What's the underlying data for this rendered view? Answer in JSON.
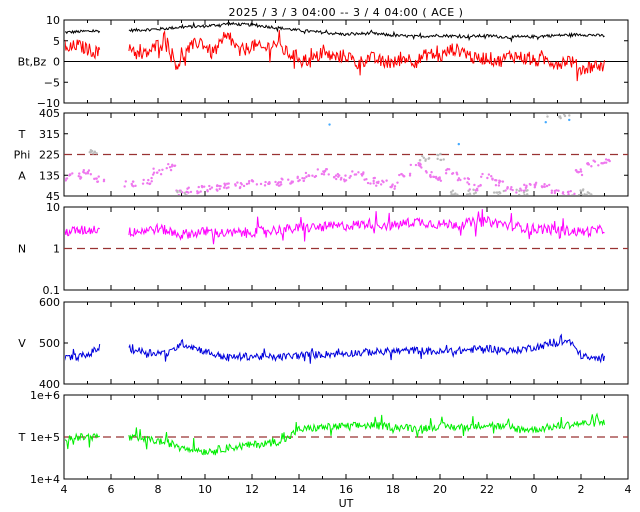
{
  "title": "2025 /  3 /  3   04:00 -- 3 /  4   04:00 ( ACE )",
  "x_axis": {
    "label": "UT",
    "range_hours": [
      4,
      28
    ],
    "ticks": [
      {
        "h": 4,
        "label": "4"
      },
      {
        "h": 6,
        "label": "6"
      },
      {
        "h": 8,
        "label": "8"
      },
      {
        "h": 10,
        "label": "10"
      },
      {
        "h": 12,
        "label": "12"
      },
      {
        "h": 14,
        "label": "14"
      },
      {
        "h": 16,
        "label": "16"
      },
      {
        "h": 18,
        "label": "18"
      },
      {
        "h": 20,
        "label": "20"
      },
      {
        "h": 22,
        "label": "22"
      },
      {
        "h": 24,
        "label": "0"
      },
      {
        "h": 26,
        "label": "2"
      },
      {
        "h": 28,
        "label": "4"
      }
    ]
  },
  "colors": {
    "bt": "#000000",
    "bz": "#ff0000",
    "theta": "#44aaff",
    "phi_away": "#ee77ee",
    "phi_toward": "#bbbbbb",
    "density": "#ff00ff",
    "speed": "#0000dd",
    "temperature": "#00ee00",
    "reference_dash": "#993333"
  },
  "chart_data": [
    {
      "type": "line",
      "name": "magnetic-field",
      "ylabel": "Bt,Bz",
      "ylim": [
        -10,
        10
      ],
      "ticks": [
        "10",
        "5",
        "0",
        "−5",
        "−10"
      ],
      "tick_values": [
        10,
        5,
        0,
        -5,
        -10
      ],
      "reference_line": 0,
      "gaps": [
        [
          5.55,
          6.75
        ],
        [
          27.2,
          28
        ]
      ],
      "series": [
        {
          "name": "Bt",
          "color": "#000000",
          "values": [
            [
              4.0,
              7.0
            ],
            [
              5.0,
              7.3
            ],
            [
              6.8,
              7.5
            ],
            [
              8.0,
              7.8
            ],
            [
              9.0,
              8.3
            ],
            [
              10.0,
              8.5
            ],
            [
              11.0,
              9.1
            ],
            [
              12.0,
              8.8
            ],
            [
              13.0,
              8.2
            ],
            [
              14.0,
              7.5
            ],
            [
              15.0,
              7.0
            ],
            [
              16.0,
              6.5
            ],
            [
              17.0,
              6.8
            ],
            [
              18.0,
              6.3
            ],
            [
              19.0,
              6.0
            ],
            [
              20.0,
              6.3
            ],
            [
              21.0,
              6.0
            ],
            [
              22.0,
              6.2
            ],
            [
              23.0,
              5.8
            ],
            [
              24.0,
              6.0
            ],
            [
              25.0,
              6.3
            ],
            [
              26.0,
              6.5
            ],
            [
              27.0,
              6.2
            ]
          ]
        },
        {
          "name": "Bz",
          "color": "#ff0000",
          "values": [
            [
              4.0,
              2.0
            ],
            [
              4.5,
              4.0
            ],
            [
              5.0,
              3.0
            ],
            [
              5.5,
              2.0
            ],
            [
              6.8,
              4.0
            ],
            [
              7.2,
              1.0
            ],
            [
              7.8,
              3.0
            ],
            [
              8.3,
              6.0
            ],
            [
              8.8,
              -1.0
            ],
            [
              9.3,
              3.0
            ],
            [
              9.8,
              5.0
            ],
            [
              10.3,
              2.0
            ],
            [
              11.0,
              6.0
            ],
            [
              11.5,
              2.0
            ],
            [
              12.0,
              4.0
            ],
            [
              12.5,
              3.0
            ],
            [
              13.0,
              4.5
            ],
            [
              13.5,
              2.0
            ],
            [
              14.0,
              1.0
            ],
            [
              14.5,
              0.0
            ],
            [
              15.0,
              2.0
            ],
            [
              15.5,
              1.0
            ],
            [
              16.0,
              1.5
            ],
            [
              16.5,
              -0.5
            ],
            [
              17.0,
              1.0
            ],
            [
              17.5,
              0.0
            ],
            [
              18.0,
              -0.5
            ],
            [
              18.5,
              1.0
            ],
            [
              19.0,
              0.0
            ],
            [
              19.5,
              2.0
            ],
            [
              20.0,
              1.0
            ],
            [
              20.5,
              3.0
            ],
            [
              21.0,
              2.5
            ],
            [
              21.5,
              0.5
            ],
            [
              22.0,
              1.0
            ],
            [
              22.5,
              0.0
            ],
            [
              23.0,
              1.5
            ],
            [
              23.5,
              1.0
            ],
            [
              24.0,
              0.0
            ],
            [
              24.5,
              0.5
            ],
            [
              25.0,
              -0.5
            ],
            [
              25.5,
              0.5
            ],
            [
              26.0,
              -2.0
            ],
            [
              26.5,
              -1.0
            ],
            [
              27.0,
              -1.0
            ]
          ]
        }
      ]
    },
    {
      "type": "scatter",
      "name": "field-angles",
      "ylabels": [
        "T",
        "Phi",
        "A"
      ],
      "ylim": [
        45,
        405
      ],
      "ticks": [
        "405",
        "315",
        "225",
        "135",
        "45"
      ],
      "tick_values": [
        405,
        315,
        225,
        135,
        45
      ],
      "reference_line": 225,
      "series": [
        {
          "name": "Phi",
          "color": "#ee77ee",
          "values": [
            [
              4.0,
              125
            ],
            [
              4.5,
              130
            ],
            [
              5.0,
              145
            ],
            [
              5.5,
              120
            ],
            [
              6.8,
              100
            ],
            [
              7.5,
              110
            ],
            [
              8.0,
              150
            ],
            [
              8.5,
              170
            ],
            [
              9.0,
              60
            ],
            [
              9.5,
              70
            ],
            [
              10.0,
              75
            ],
            [
              10.5,
              80
            ],
            [
              11.0,
              85
            ],
            [
              11.5,
              90
            ],
            [
              12.0,
              100
            ],
            [
              12.5,
              105
            ],
            [
              13.0,
              95
            ],
            [
              13.5,
              110
            ],
            [
              14.0,
              120
            ],
            [
              14.5,
              140
            ],
            [
              15.0,
              150
            ],
            [
              15.5,
              130
            ],
            [
              16.0,
              120
            ],
            [
              16.5,
              140
            ],
            [
              17.0,
              110
            ],
            [
              17.5,
              100
            ],
            [
              18.0,
              90
            ],
            [
              18.5,
              130
            ],
            [
              19.0,
              180
            ],
            [
              19.5,
              140
            ],
            [
              20.0,
              120
            ],
            [
              20.5,
              150
            ],
            [
              21.0,
              110
            ],
            [
              21.5,
              80
            ],
            [
              22.0,
              130
            ],
            [
              22.5,
              100
            ],
            [
              23.0,
              70
            ],
            [
              23.5,
              80
            ],
            [
              24.0,
              90
            ],
            [
              24.5,
              85
            ],
            [
              25.0,
              70
            ],
            [
              25.5,
              60
            ],
            [
              26.0,
              150
            ],
            [
              26.5,
              185
            ],
            [
              27.0,
              190
            ]
          ]
        },
        {
          "name": "Phi-sunward",
          "color": "#bbbbbb",
          "values": [
            [
              5.3,
              230
            ],
            [
              9.0,
              55
            ],
            [
              19.3,
              210
            ],
            [
              20.0,
              215
            ],
            [
              20.5,
              55
            ],
            [
              21.3,
              60
            ],
            [
              22.5,
              55
            ],
            [
              23.5,
              60
            ],
            [
              24.8,
              400
            ],
            [
              25.3,
              395
            ],
            [
              25.8,
              55
            ],
            [
              26.2,
              60
            ]
          ]
        },
        {
          "name": "Theta",
          "color": "#44aaff",
          "values": [
            [
              15.3,
              355
            ],
            [
              20.8,
              270
            ],
            [
              24.5,
              365
            ],
            [
              25.5,
              375
            ]
          ]
        }
      ]
    },
    {
      "type": "line",
      "name": "proton-density",
      "ylabel": "N",
      "scale": "log",
      "ylim": [
        0.1,
        10
      ],
      "ticks": [
        "10",
        "1",
        "0.1"
      ],
      "tick_values": [
        10,
        1,
        0.1
      ],
      "reference_line": 1,
      "gaps": [
        [
          5.55,
          6.75
        ],
        [
          27.2,
          28
        ]
      ],
      "series": [
        {
          "name": "N",
          "color": "#ff00ff",
          "values": [
            [
              4.0,
              2.5
            ],
            [
              5.0,
              2.8
            ],
            [
              5.5,
              3.0
            ],
            [
              6.8,
              2.5
            ],
            [
              8.0,
              3.0
            ],
            [
              9.0,
              2.2
            ],
            [
              10.0,
              2.5
            ],
            [
              11.0,
              2.3
            ],
            [
              12.0,
              2.5
            ],
            [
              13.0,
              2.8
            ],
            [
              14.0,
              3.0
            ],
            [
              15.0,
              3.3
            ],
            [
              16.0,
              3.5
            ],
            [
              17.0,
              4.0
            ],
            [
              18.0,
              3.5
            ],
            [
              19.0,
              4.5
            ],
            [
              20.0,
              3.8
            ],
            [
              21.0,
              4.0
            ],
            [
              22.0,
              4.5
            ],
            [
              23.0,
              3.5
            ],
            [
              24.0,
              3.0
            ],
            [
              25.0,
              2.8
            ],
            [
              26.0,
              2.5
            ],
            [
              27.0,
              2.8
            ]
          ]
        }
      ]
    },
    {
      "type": "line",
      "name": "solar-wind-speed",
      "ylabel": "V",
      "ylim": [
        400,
        600
      ],
      "ticks": [
        "600",
        "500",
        "400"
      ],
      "tick_values": [
        600,
        500,
        400
      ],
      "gaps": [
        [
          5.55,
          6.75
        ],
        [
          27.2,
          28
        ]
      ],
      "series": [
        {
          "name": "V",
          "color": "#0000dd",
          "values": [
            [
              4.0,
              462
            ],
            [
              5.0,
              470
            ],
            [
              5.5,
              490
            ],
            [
              6.8,
              485
            ],
            [
              7.5,
              478
            ],
            [
              8.5,
              475
            ],
            [
              9.0,
              500
            ],
            [
              9.5,
              490
            ],
            [
              10.0,
              480
            ],
            [
              10.5,
              470
            ],
            [
              11.0,
              465
            ],
            [
              12.0,
              468
            ],
            [
              13.0,
              465
            ],
            [
              14.0,
              470
            ],
            [
              15.0,
              472
            ],
            [
              16.0,
              475
            ],
            [
              17.0,
              478
            ],
            [
              18.0,
              480
            ],
            [
              19.0,
              482
            ],
            [
              20.0,
              478
            ],
            [
              21.0,
              482
            ],
            [
              22.0,
              488
            ],
            [
              23.0,
              480
            ],
            [
              24.0,
              490
            ],
            [
              25.0,
              500
            ],
            [
              25.5,
              505
            ],
            [
              26.0,
              470
            ],
            [
              26.5,
              460
            ],
            [
              27.0,
              465
            ]
          ]
        }
      ]
    },
    {
      "type": "line",
      "name": "proton-temperature",
      "ylabel": "T",
      "scale": "log",
      "ylim": [
        10000,
        1000000
      ],
      "ticks": [
        "1e+6",
        "1e+5",
        "1e+4"
      ],
      "tick_values": [
        1000000,
        100000,
        10000
      ],
      "reference_line": 100000,
      "gaps": [
        [
          5.55,
          6.75
        ],
        [
          27.2,
          28
        ]
      ],
      "series": [
        {
          "name": "T",
          "color": "#00ee00",
          "values": [
            [
              4.0,
              95000
            ],
            [
              5.0,
              100000
            ],
            [
              5.5,
              105000
            ],
            [
              6.8,
              95000
            ],
            [
              8.0,
              80000
            ],
            [
              9.0,
              60000
            ],
            [
              10.0,
              45000
            ],
            [
              11.0,
              55000
            ],
            [
              12.0,
              65000
            ],
            [
              13.0,
              75000
            ],
            [
              13.5,
              90000
            ],
            [
              14.0,
              150000
            ],
            [
              15.0,
              170000
            ],
            [
              16.0,
              180000
            ],
            [
              17.0,
              190000
            ],
            [
              18.0,
              175000
            ],
            [
              19.0,
              160000
            ],
            [
              20.0,
              180000
            ],
            [
              21.0,
              170000
            ],
            [
              22.0,
              200000
            ],
            [
              23.0,
              160000
            ],
            [
              24.0,
              150000
            ],
            [
              25.0,
              180000
            ],
            [
              26.0,
              210000
            ],
            [
              27.0,
              220000
            ]
          ]
        }
      ]
    }
  ]
}
